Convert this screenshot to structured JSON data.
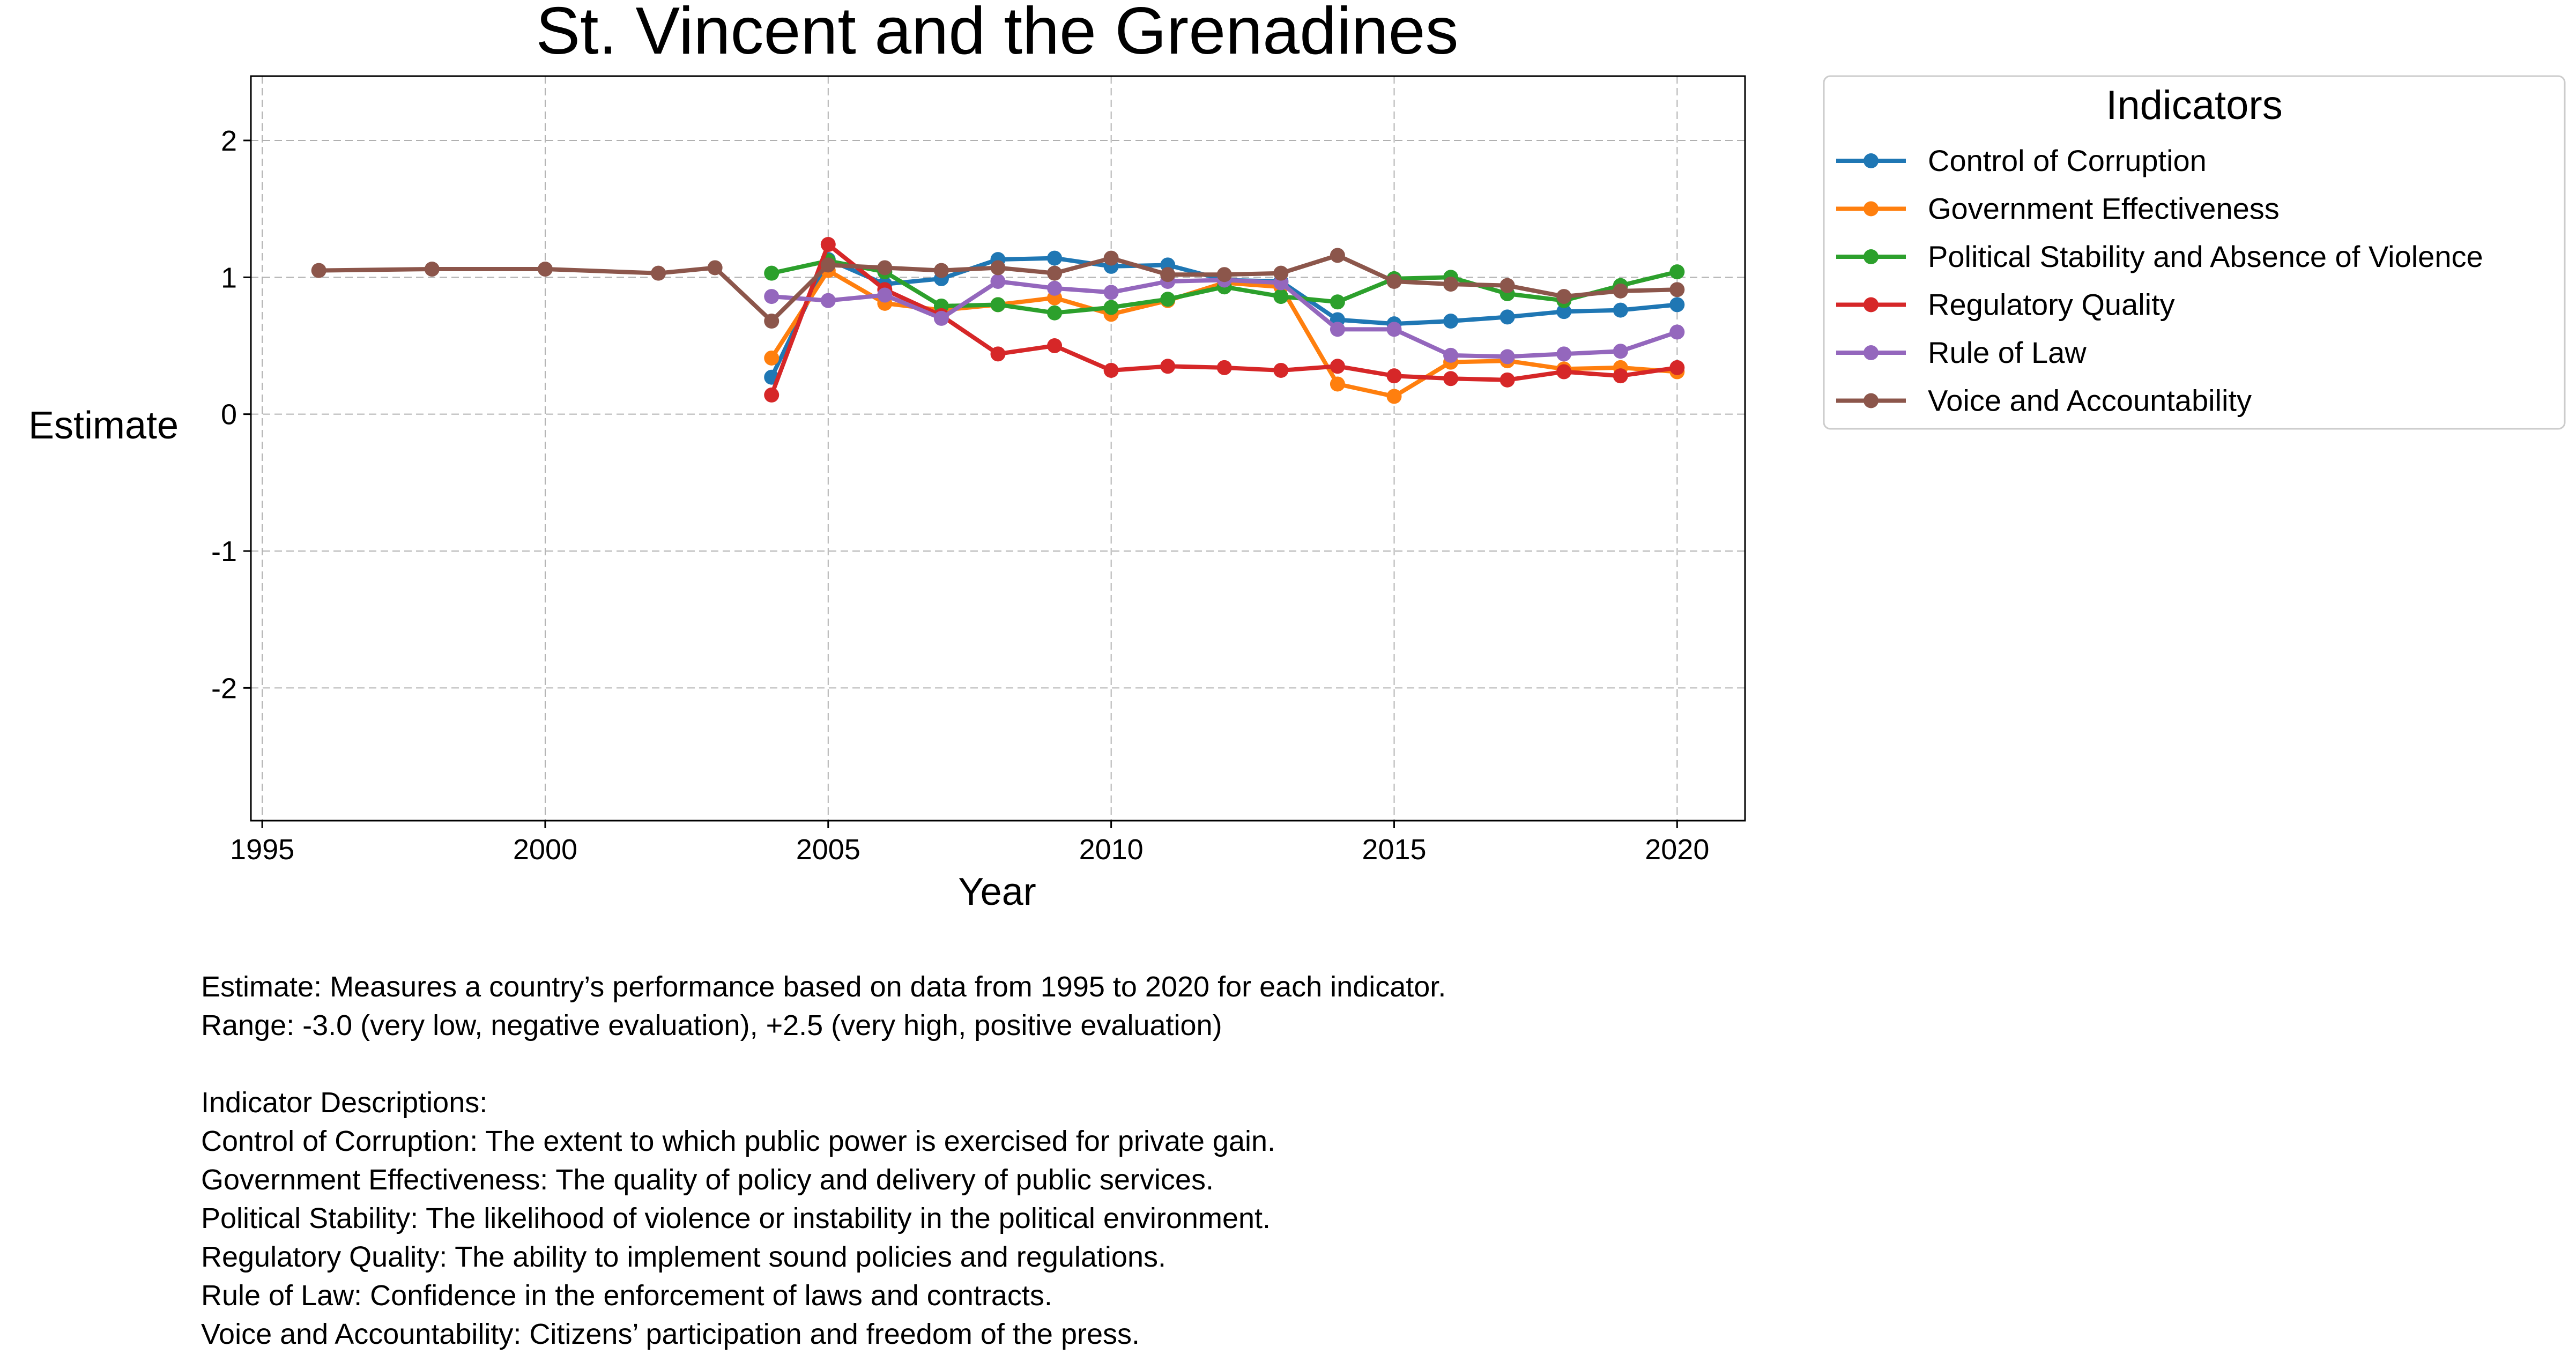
{
  "chart_data": {
    "type": "line",
    "title": "St. Vincent and the Grenadines",
    "xlabel": "Year",
    "ylabel": "Estimate",
    "xlim": [
      1994.8,
      2021.2
    ],
    "ylim": [
      -2.97,
      2.47
    ],
    "x_ticks": [
      1995,
      2000,
      2005,
      2010,
      2015,
      2020
    ],
    "y_ticks": [
      -2,
      -1,
      0,
      1,
      2
    ],
    "grid": true,
    "legend_title": "Indicators",
    "legend_position": "outside-top-right",
    "series": [
      {
        "name": "Control of Corruption",
        "color": "#1f77b4",
        "x": [
          2004,
          2005,
          2006,
          2007,
          2008,
          2009,
          2010,
          2011,
          2012,
          2013,
          2014,
          2015,
          2016,
          2017,
          2018,
          2019,
          2020
        ],
        "y": [
          0.27,
          1.13,
          0.95,
          0.99,
          1.13,
          1.14,
          1.08,
          1.09,
          0.98,
          0.97,
          0.69,
          0.66,
          0.68,
          0.71,
          0.75,
          0.76,
          0.8
        ]
      },
      {
        "name": "Government Effectiveness",
        "color": "#ff7f0e",
        "x": [
          2004,
          2005,
          2006,
          2007,
          2008,
          2009,
          2010,
          2011,
          2012,
          2013,
          2014,
          2015,
          2016,
          2017,
          2018,
          2019,
          2020
        ],
        "y": [
          0.41,
          1.05,
          0.81,
          0.76,
          0.8,
          0.85,
          0.73,
          0.83,
          0.96,
          0.93,
          0.22,
          0.13,
          0.38,
          0.39,
          0.33,
          0.34,
          0.31
        ]
      },
      {
        "name": "Political Stability and Absence of Violence",
        "color": "#2ca02c",
        "x": [
          2004,
          2005,
          2006,
          2007,
          2008,
          2009,
          2010,
          2011,
          2012,
          2013,
          2014,
          2015,
          2016,
          2017,
          2018,
          2019,
          2020
        ],
        "y": [
          1.03,
          1.12,
          1.04,
          0.79,
          0.8,
          0.74,
          0.78,
          0.84,
          0.93,
          0.86,
          0.82,
          0.99,
          1.0,
          0.88,
          0.83,
          0.94,
          1.04
        ]
      },
      {
        "name": "Regulatory Quality",
        "color": "#d62728",
        "x": [
          2004,
          2005,
          2006,
          2007,
          2008,
          2009,
          2010,
          2011,
          2012,
          2013,
          2014,
          2015,
          2016,
          2017,
          2018,
          2019,
          2020
        ],
        "y": [
          0.14,
          1.24,
          0.91,
          0.72,
          0.44,
          0.5,
          0.32,
          0.35,
          0.34,
          0.32,
          0.35,
          0.28,
          0.26,
          0.25,
          0.31,
          0.28,
          0.34
        ]
      },
      {
        "name": "Rule of Law",
        "color": "#9467bd",
        "x": [
          2004,
          2005,
          2006,
          2007,
          2008,
          2009,
          2010,
          2011,
          2012,
          2013,
          2014,
          2015,
          2016,
          2017,
          2018,
          2019,
          2020
        ],
        "y": [
          0.86,
          0.83,
          0.87,
          0.7,
          0.97,
          0.92,
          0.89,
          0.97,
          0.98,
          0.96,
          0.62,
          0.62,
          0.43,
          0.42,
          0.44,
          0.46,
          0.6
        ]
      },
      {
        "name": "Voice and Accountability",
        "color": "#8c564b",
        "x": [
          1996,
          1998,
          2000,
          2002,
          2003,
          2004,
          2005,
          2006,
          2007,
          2008,
          2009,
          2010,
          2011,
          2012,
          2013,
          2014,
          2015,
          2016,
          2017,
          2018,
          2019,
          2020
        ],
        "y": [
          1.05,
          1.06,
          1.06,
          1.03,
          1.07,
          0.68,
          1.09,
          1.07,
          1.05,
          1.07,
          1.03,
          1.14,
          1.02,
          1.02,
          1.03,
          1.16,
          0.97,
          0.95,
          0.94,
          0.86,
          0.9,
          0.91
        ]
      }
    ]
  },
  "notes": [
    "Estimate: Measures a country’s performance based on data from 1995 to 2020 for each indicator.",
    "Range: -3.0 (very low, negative evaluation), +2.5 (very high, positive evaluation)",
    "",
    "Indicator Descriptions:",
    "Control of Corruption: The extent to which public power is exercised for private gain.",
    "Government Effectiveness: The quality of policy and delivery of public services.",
    "Political Stability: The likelihood of violence or instability in the political environment.",
    "Regulatory Quality: The ability to implement sound policies and regulations.",
    "Rule of Law: Confidence in the enforcement of laws and contracts.",
    "Voice and Accountability: Citizens’ participation and freedom of the press."
  ]
}
